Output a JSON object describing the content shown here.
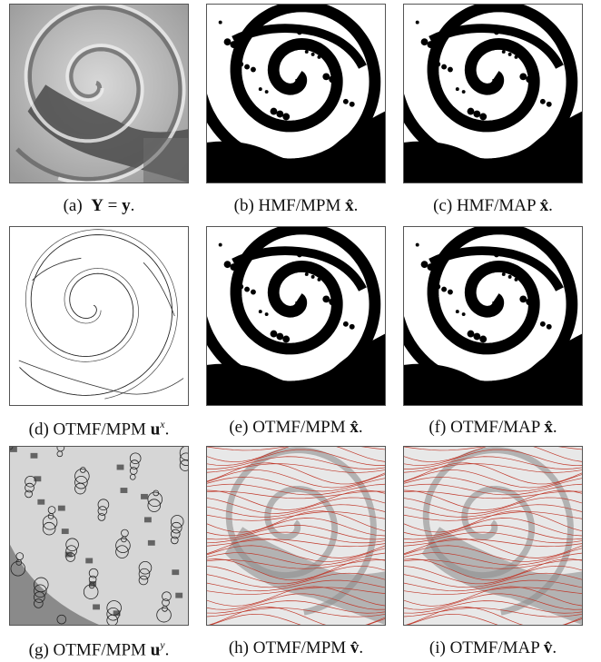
{
  "figure": {
    "panels": [
      {
        "id": "a",
        "label": "(a)",
        "math": "Y = y.",
        "kind": "satellite"
      },
      {
        "id": "b",
        "label": "(b)",
        "text": "HMF/MPM",
        "bold": "x̂",
        "after": ".",
        "kind": "binary"
      },
      {
        "id": "c",
        "label": "(c)",
        "text": "HMF/MAP",
        "bold": "x̂",
        "after": ".",
        "kind": "binary"
      },
      {
        "id": "d",
        "label": "(d)",
        "text": "OTMF/MPM",
        "bold": "u",
        "sup": "x",
        "after": ".",
        "kind": "edges"
      },
      {
        "id": "e",
        "label": "(e)",
        "text": "OTMF/MPM",
        "bold": "x̂",
        "after": ".",
        "kind": "binary"
      },
      {
        "id": "f",
        "label": "(f)",
        "text": "OTMF/MAP",
        "bold": "x̂",
        "after": ".",
        "kind": "binary"
      },
      {
        "id": "g",
        "label": "(g)",
        "text": "OTMF/MPM",
        "bold": "u",
        "sup": "y",
        "after": ".",
        "kind": "texture"
      },
      {
        "id": "h",
        "label": "(h)",
        "text": "OTMF/MPM",
        "bold": "v̂",
        "after": ".",
        "kind": "contours"
      },
      {
        "id": "i",
        "label": "(i)",
        "text": "OTMF/MAP",
        "bold": "v̂",
        "after": ".",
        "kind": "contours"
      }
    ],
    "colors": {
      "contour_lines": "#c0392b",
      "binary_fg": "#000000",
      "binary_bg": "#ffffff"
    }
  }
}
